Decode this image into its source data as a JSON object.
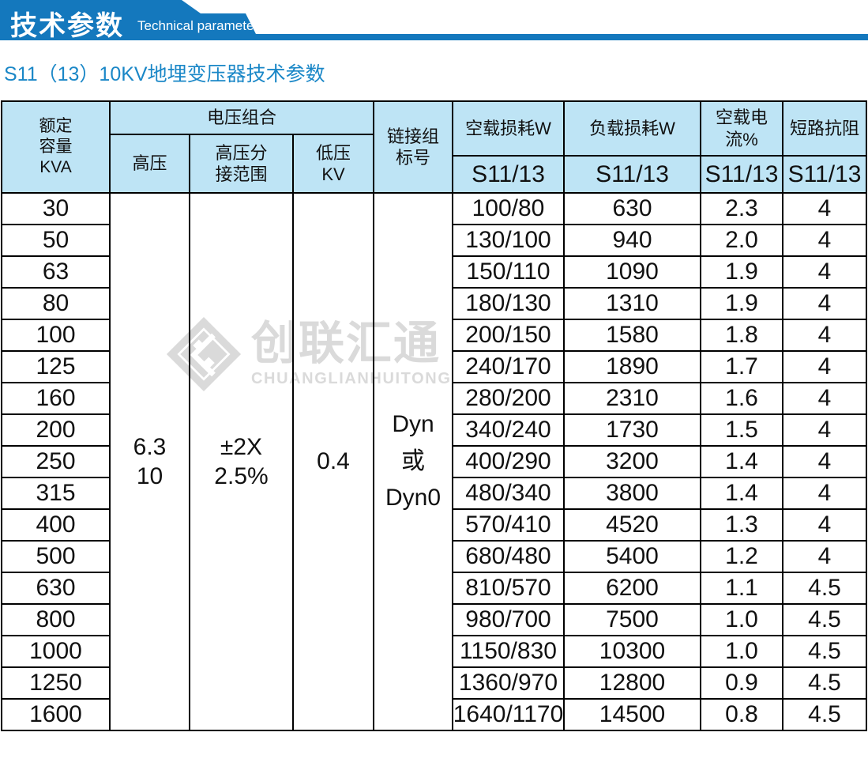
{
  "banner": {
    "title_zh": "技术参数",
    "title_en": "Technical parameter",
    "bg_color": "#1478bd"
  },
  "subtitle": "S11（13）10KV地埋变压器技术参数",
  "watermark": {
    "logo": "diamond-swirl-logo",
    "text_zh": "创联汇通",
    "text_en": "CHUANGLIANHUITONG",
    "color": "#dadada"
  },
  "table": {
    "header": {
      "capacity": "额定\n容量\nKVA",
      "voltage_group": "电压组合",
      "hv": "高压",
      "tap_range": "高压分\n接范围",
      "lv": "低压\nKV",
      "link_group": "链接组\n标号",
      "noload_loss": "空载损耗W",
      "load_loss": "负载损耗W",
      "noload_current": "空载电流%",
      "impedance": "短路抗阻",
      "sub_noload": "S11/13",
      "sub_load": "S11/13",
      "sub_current": "S11/13",
      "sub_impedance": "S11/13"
    },
    "merged": {
      "hv": "6.3\n10",
      "tap": "±2X\n2.5%",
      "lv": "0.4",
      "link": "Dyn\n或\nDyn0"
    },
    "rows": [
      {
        "kva": "30",
        "noload": "100/80",
        "load": "630",
        "current": "2.3",
        "impedance": "4"
      },
      {
        "kva": "50",
        "noload": "130/100",
        "load": "940",
        "current": "2.0",
        "impedance": "4"
      },
      {
        "kva": "63",
        "noload": "150/110",
        "load": "1090",
        "current": "1.9",
        "impedance": "4"
      },
      {
        "kva": "80",
        "noload": "180/130",
        "load": "1310",
        "current": "1.9",
        "impedance": "4"
      },
      {
        "kva": "100",
        "noload": "200/150",
        "load": "1580",
        "current": "1.8",
        "impedance": "4"
      },
      {
        "kva": "125",
        "noload": "240/170",
        "load": "1890",
        "current": "1.7",
        "impedance": "4"
      },
      {
        "kva": "160",
        "noload": "280/200",
        "load": "2310",
        "current": "1.6",
        "impedance": "4"
      },
      {
        "kva": "200",
        "noload": "340/240",
        "load": "1730",
        "current": "1.5",
        "impedance": "4"
      },
      {
        "kva": "250",
        "noload": "400/290",
        "load": "3200",
        "current": "1.4",
        "impedance": "4"
      },
      {
        "kva": "315",
        "noload": "480/340",
        "load": "3800",
        "current": "1.4",
        "impedance": "4"
      },
      {
        "kva": "400",
        "noload": "570/410",
        "load": "4520",
        "current": "1.3",
        "impedance": "4"
      },
      {
        "kva": "500",
        "noload": "680/480",
        "load": "5400",
        "current": "1.2",
        "impedance": "4"
      },
      {
        "kva": "630",
        "noload": "810/570",
        "load": "6200",
        "current": "1.1",
        "impedance": "4.5"
      },
      {
        "kva": "800",
        "noload": "980/700",
        "load": "7500",
        "current": "1.0",
        "impedance": "4.5"
      },
      {
        "kva": "1000",
        "noload": "1150/830",
        "load": "10300",
        "current": "1.0",
        "impedance": "4.5"
      },
      {
        "kva": "1250",
        "noload": "1360/970",
        "load": "12800",
        "current": "0.9",
        "impedance": "4.5"
      },
      {
        "kva": "1600",
        "noload": "1640/1170",
        "load": "14500",
        "current": "0.8",
        "impedance": "4.5"
      }
    ]
  }
}
